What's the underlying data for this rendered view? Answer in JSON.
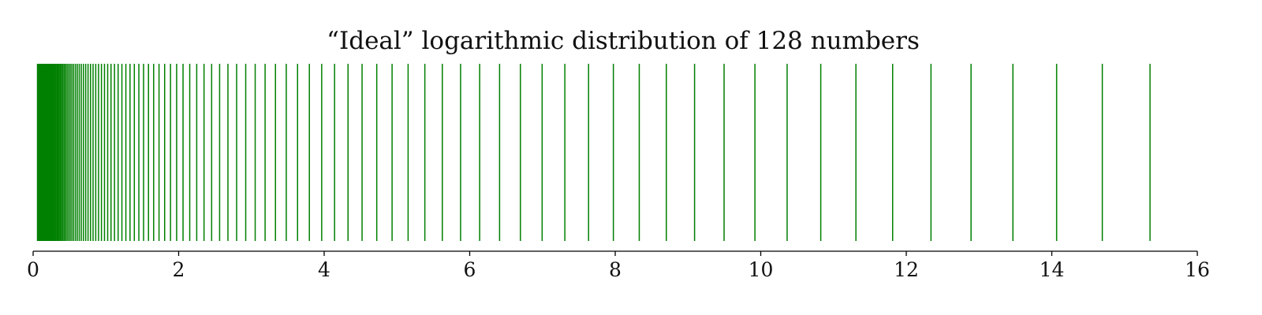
{
  "chart_data": {
    "type": "scatter",
    "mark_style": "vertical-lines",
    "title": "“Ideal” logarithmic distribution of 128 numbers",
    "xlabel": "",
    "ylabel": "",
    "xlim": [
      0,
      16
    ],
    "x_ticks": [
      0,
      2,
      4,
      6,
      8,
      10,
      12,
      14,
      16
    ],
    "x_tick_labels": [
      "0",
      "2",
      "4",
      "6",
      "8",
      "10",
      "12",
      "14",
      "16"
    ],
    "grid": false,
    "point_count": 128,
    "distribution": "geometric",
    "x_min_value": 0.06,
    "x_max_value": 15.35,
    "line_color": "#008000",
    "axis_color": "#000000"
  }
}
